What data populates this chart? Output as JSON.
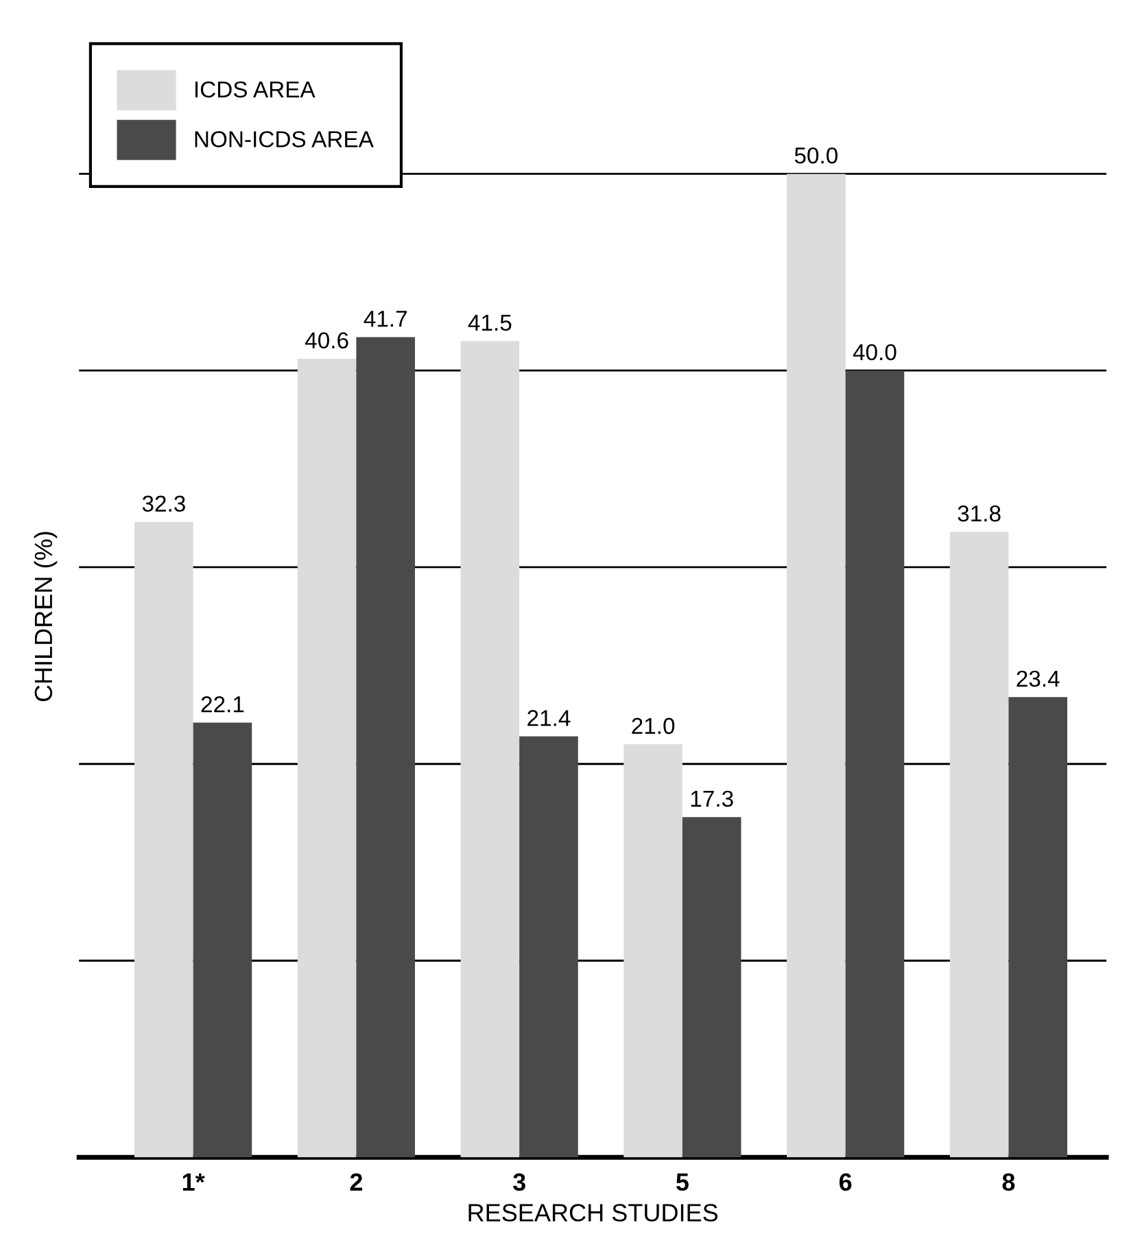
{
  "chart_data": {
    "type": "bar",
    "xlabel": "RESEARCH STUDIES",
    "ylabel": "CHILDREN (%)",
    "categories": [
      "1*",
      "2",
      "3",
      "5",
      "6",
      "8"
    ],
    "series": [
      {
        "name": "ICDS AREA",
        "color": "#dcdcdc",
        "values": [
          32.3,
          40.6,
          41.5,
          21.0,
          50.0,
          31.8
        ],
        "value_labels": [
          "32.3",
          "40.6",
          "41.5",
          "21.0",
          "50.0",
          "31.8"
        ]
      },
      {
        "name": "NON-ICDS AREA",
        "color": "#4a4a4a",
        "values": [
          22.1,
          41.7,
          21.4,
          17.3,
          40.0,
          23.4
        ],
        "value_labels": [
          "22.1",
          "41.7",
          "21.4",
          "17.3",
          "40.0",
          "23.4"
        ]
      }
    ],
    "ylim": [
      0,
      55
    ],
    "yticks": [
      {
        "value": 10,
        "label": null
      },
      {
        "value": 20,
        "label": null
      },
      {
        "value": 30,
        "label": null
      },
      {
        "value": 40,
        "label": null
      },
      {
        "value": 50,
        "label": null
      }
    ],
    "grid": "y",
    "legend": "top left"
  }
}
